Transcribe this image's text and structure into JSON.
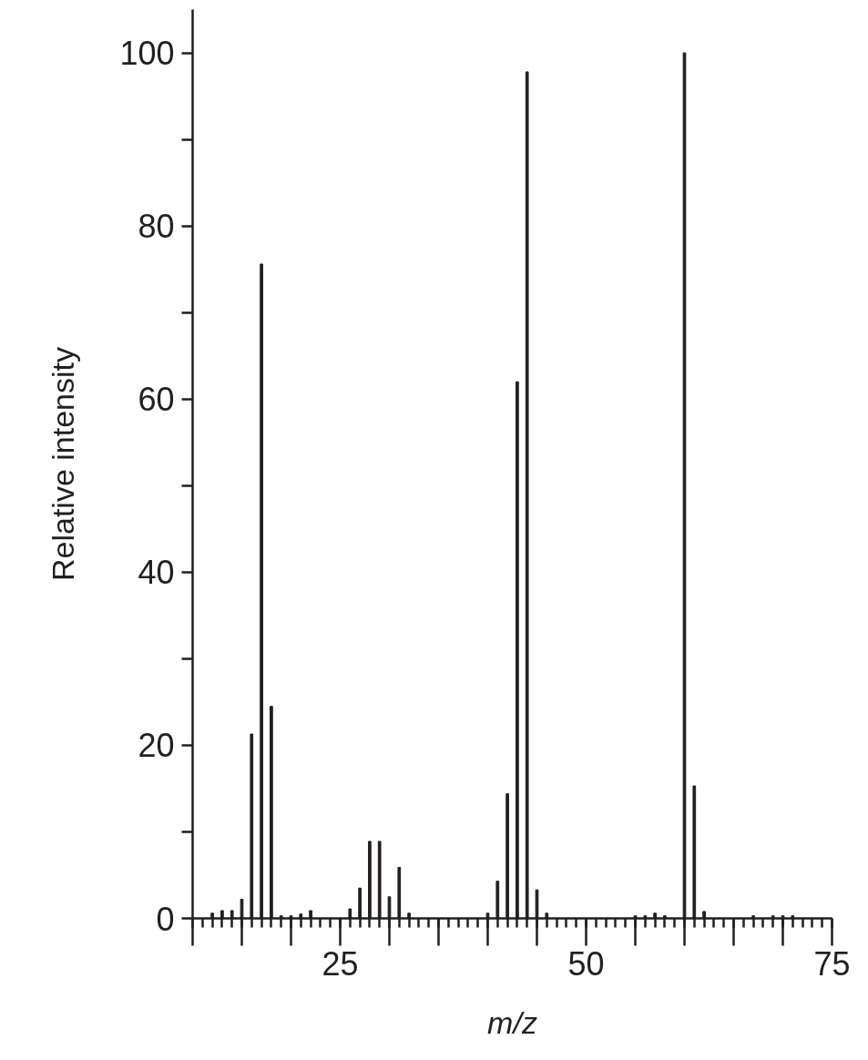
{
  "chart_data": {
    "type": "bar",
    "xlabel": "m/z",
    "ylabel": "Relative intensity",
    "x": [
      12,
      13,
      14,
      15,
      16,
      17,
      18,
      19,
      20,
      21,
      22,
      26,
      27,
      28,
      29,
      30,
      31,
      32,
      40,
      41,
      42,
      43,
      44,
      45,
      46,
      55,
      56,
      57,
      58,
      60,
      61,
      62,
      67,
      69,
      70,
      71
    ],
    "values": [
      0.6,
      0.9,
      0.9,
      2.2,
      21.3,
      75.6,
      24.5,
      0.3,
      0.3,
      0.5,
      0.9,
      1.1,
      3.5,
      8.9,
      8.9,
      2.5,
      5.9,
      0.6,
      0.6,
      4.3,
      14.4,
      62,
      97.8,
      3.3,
      0.6,
      0.3,
      0.3,
      0.6,
      0.3,
      100,
      15.3,
      0.8,
      0.3,
      0.3,
      0.3,
      0.3
    ],
    "color": "#231f20",
    "xlim": [
      10,
      75
    ],
    "xticks": [
      {
        "value": 10,
        "label": null
      },
      {
        "value": 15,
        "label": null
      },
      {
        "value": 20,
        "label": null
      },
      25,
      {
        "value": 30,
        "label": null
      },
      {
        "value": 35,
        "label": null
      },
      {
        "value": 40,
        "label": null
      },
      {
        "value": 45,
        "label": null
      },
      50,
      {
        "value": 55,
        "label": null
      },
      {
        "value": 60,
        "label": null
      },
      {
        "value": 65,
        "label": null
      },
      {
        "value": 70,
        "label": null
      },
      75
    ],
    "ylim": [
      0,
      105
    ],
    "yticks": [
      0,
      {
        "value": 10,
        "label": null
      },
      20,
      {
        "value": 30,
        "label": null
      },
      40,
      {
        "value": 50,
        "label": null
      },
      60,
      {
        "value": 70,
        "label": null
      },
      80,
      {
        "value": 90,
        "label": null
      },
      100
    ],
    "grid": false
  }
}
